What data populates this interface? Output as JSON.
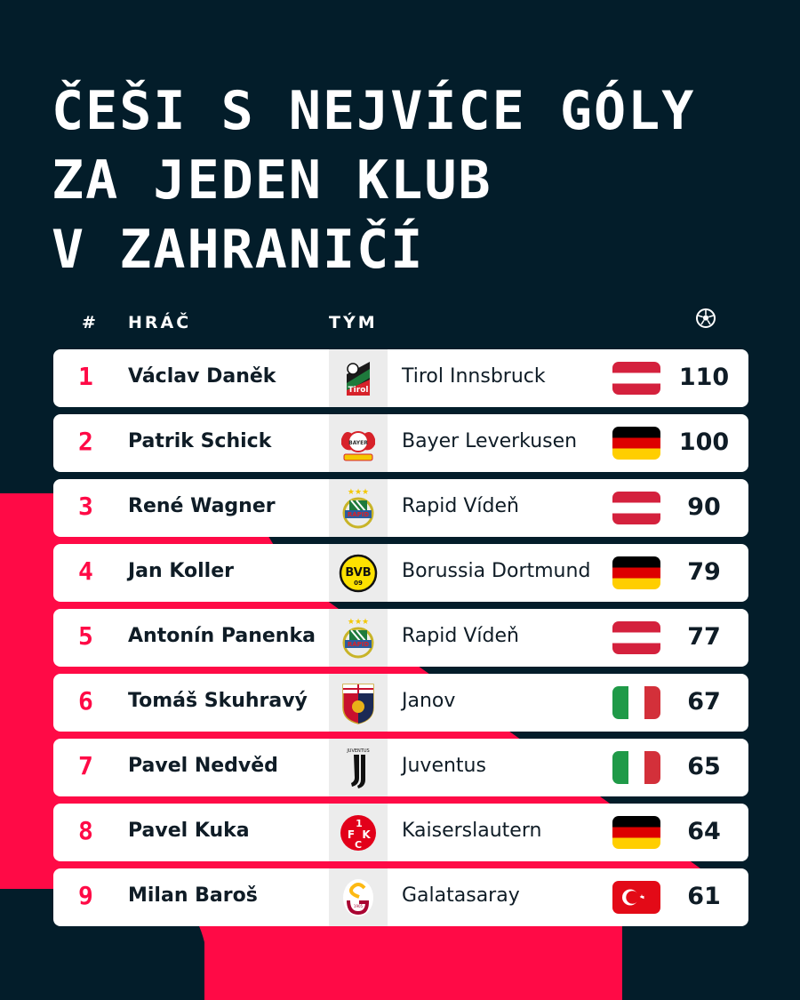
{
  "title": {
    "lines": [
      "ČEŠI S NEJVÍCE GÓLY",
      "ZA JEDEN KLUB",
      "V ZAHRANIČÍ"
    ]
  },
  "table": {
    "headers": {
      "rank": "#",
      "player": "HRÁČ",
      "team": "TÝM",
      "goals_icon": "football-icon"
    },
    "rows": [
      {
        "rank": "1",
        "player": "Václav Daněk",
        "team": "Tirol Innsbruck",
        "logo": "tirol-innsbruck-logo",
        "flag": "austria",
        "goals": "110"
      },
      {
        "rank": "2",
        "player": "Patrik Schick",
        "team": "Bayer Leverkusen",
        "logo": "bayer-leverkusen-logo",
        "flag": "germany",
        "goals": "100"
      },
      {
        "rank": "3",
        "player": "René Wagner",
        "team": "Rapid Vídeň",
        "logo": "rapid-wien-logo",
        "flag": "austria",
        "goals": "90"
      },
      {
        "rank": "4",
        "player": "Jan Koller",
        "team": "Borussia Dortmund",
        "logo": "bvb-logo",
        "flag": "germany",
        "goals": "79"
      },
      {
        "rank": "5",
        "player": "Antonín Panenka",
        "team": "Rapid Vídeň",
        "logo": "rapid-wien-logo",
        "flag": "austria",
        "goals": "77"
      },
      {
        "rank": "6",
        "player": "Tomáš Skuhravý",
        "team": "Janov",
        "logo": "genoa-logo",
        "flag": "italy",
        "goals": "67"
      },
      {
        "rank": "7",
        "player": "Pavel Nedvěd",
        "team": "Juventus",
        "logo": "juventus-logo",
        "flag": "italy",
        "goals": "65"
      },
      {
        "rank": "8",
        "player": "Pavel Kuka",
        "team": "Kaiserslautern",
        "logo": "fck-logo",
        "flag": "germany",
        "goals": "64"
      },
      {
        "rank": "9",
        "player": "Milan Baroš",
        "team": "Galatasaray",
        "logo": "galatasaray-logo",
        "flag": "turkey",
        "goals": "61"
      }
    ]
  },
  "colors": {
    "background": "#031d2a",
    "accent": "#ff0a46",
    "row_bg": "#ffffff",
    "logo_cell_bg": "#ececec",
    "text_dark": "#0f1c26"
  }
}
